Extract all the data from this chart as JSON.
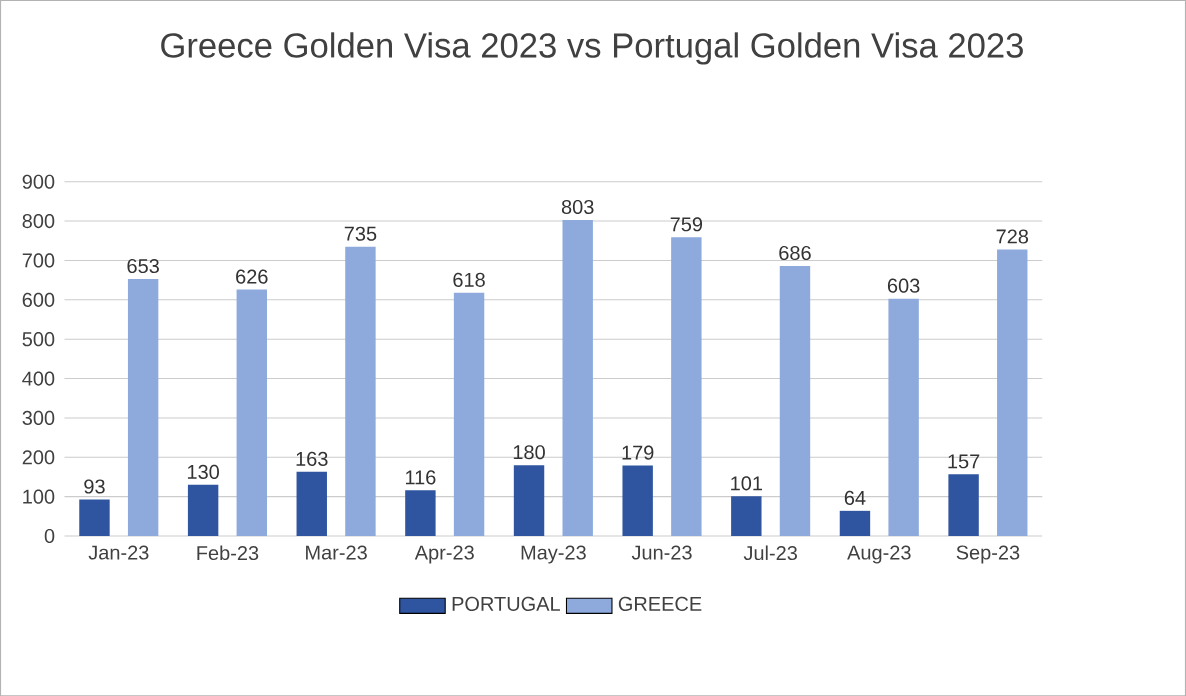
{
  "chart_data": {
    "type": "bar",
    "title": "Greece Golden Visa 2023 vs Portugal Golden Visa 2023",
    "categories": [
      "Jan-23",
      "Feb-23",
      "Mar-23",
      "Apr-23",
      "May-23",
      "Jun-23",
      "Jul-23",
      "Aug-23",
      "Sep-23"
    ],
    "series": [
      {
        "name": "PORTUGAL",
        "color": "#2f55a0",
        "values": [
          93,
          130,
          163,
          116,
          180,
          179,
          101,
          64,
          157
        ]
      },
      {
        "name": "GREECE",
        "color": "#8eaadc",
        "values": [
          653,
          626,
          735,
          618,
          803,
          759,
          686,
          603,
          728
        ]
      }
    ],
    "ylim": [
      0,
      900
    ],
    "yticks": [
      0,
      100,
      200,
      300,
      400,
      500,
      600,
      700,
      800,
      900
    ],
    "grid": "y",
    "legend": "bottom",
    "data_labels": true
  }
}
